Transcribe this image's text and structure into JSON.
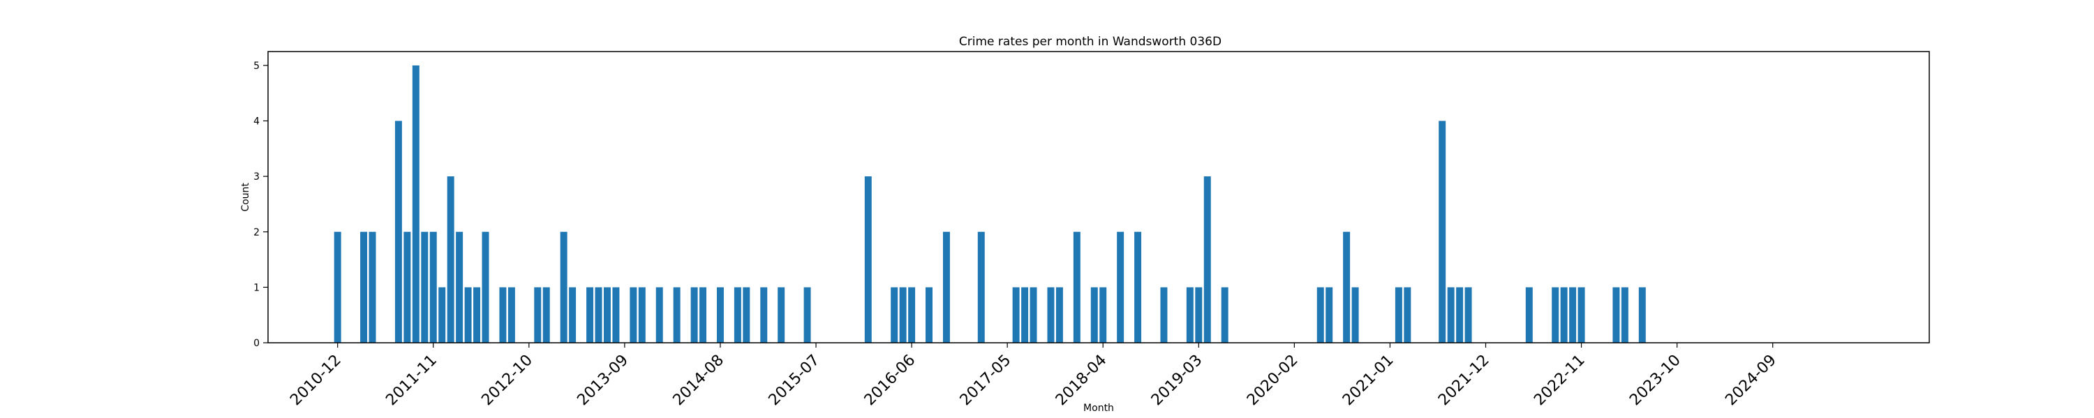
{
  "chart_data": {
    "type": "bar",
    "title": "Crime rates per month in Wandsworth 036D",
    "xlabel": "Month",
    "ylabel": "Count",
    "ylim": [
      0,
      5.25
    ],
    "xlim": [
      "2010-04",
      "2026-03"
    ],
    "yticks": [
      0,
      1,
      2,
      3,
      4,
      5
    ],
    "xticks": [
      "2010-12",
      "2011-11",
      "2012-10",
      "2013-09",
      "2014-08",
      "2015-07",
      "2016-06",
      "2017-05",
      "2018-04",
      "2019-03",
      "2020-02",
      "2021-01",
      "2021-12",
      "2022-11",
      "2023-10",
      "2024-09"
    ],
    "grid": false,
    "bar_color": "#1f77b4",
    "categories": [
      "2010-12",
      "2011-03",
      "2011-04",
      "2011-07",
      "2011-08",
      "2011-09",
      "2011-10",
      "2011-11",
      "2011-12",
      "2012-01",
      "2012-02",
      "2012-03",
      "2012-04",
      "2012-05",
      "2012-07",
      "2012-08",
      "2012-11",
      "2012-12",
      "2013-02",
      "2013-03",
      "2013-05",
      "2013-06",
      "2013-07",
      "2013-08",
      "2013-10",
      "2013-11",
      "2014-01",
      "2014-03",
      "2014-05",
      "2014-06",
      "2014-08",
      "2014-10",
      "2014-11",
      "2015-01",
      "2015-03",
      "2015-06",
      "2016-01",
      "2016-04",
      "2016-05",
      "2016-06",
      "2016-08",
      "2016-10",
      "2017-02",
      "2017-06",
      "2017-07",
      "2017-08",
      "2017-10",
      "2017-11",
      "2018-01",
      "2018-03",
      "2018-04",
      "2018-06",
      "2018-08",
      "2018-11",
      "2019-02",
      "2019-03",
      "2019-04",
      "2019-06",
      "2020-05",
      "2020-06",
      "2020-08",
      "2020-09",
      "2021-02",
      "2021-03",
      "2021-07",
      "2021-08",
      "2021-09",
      "2021-10",
      "2022-05",
      "2022-08",
      "2022-09",
      "2022-10",
      "2022-11",
      "2023-03",
      "2023-04",
      "2023-06"
    ],
    "values": [
      2,
      2,
      2,
      4,
      2,
      5,
      2,
      2,
      1,
      3,
      2,
      1,
      1,
      2,
      1,
      1,
      1,
      1,
      2,
      1,
      1,
      1,
      1,
      1,
      1,
      1,
      1,
      1,
      1,
      1,
      1,
      1,
      1,
      1,
      1,
      1,
      3,
      1,
      1,
      1,
      1,
      2,
      2,
      1,
      1,
      1,
      1,
      1,
      2,
      1,
      1,
      2,
      2,
      1,
      1,
      1,
      3,
      1,
      1,
      1,
      2,
      1,
      1,
      1,
      4,
      1,
      1,
      1,
      1,
      1,
      1,
      1,
      1,
      1,
      1,
      1
    ]
  }
}
